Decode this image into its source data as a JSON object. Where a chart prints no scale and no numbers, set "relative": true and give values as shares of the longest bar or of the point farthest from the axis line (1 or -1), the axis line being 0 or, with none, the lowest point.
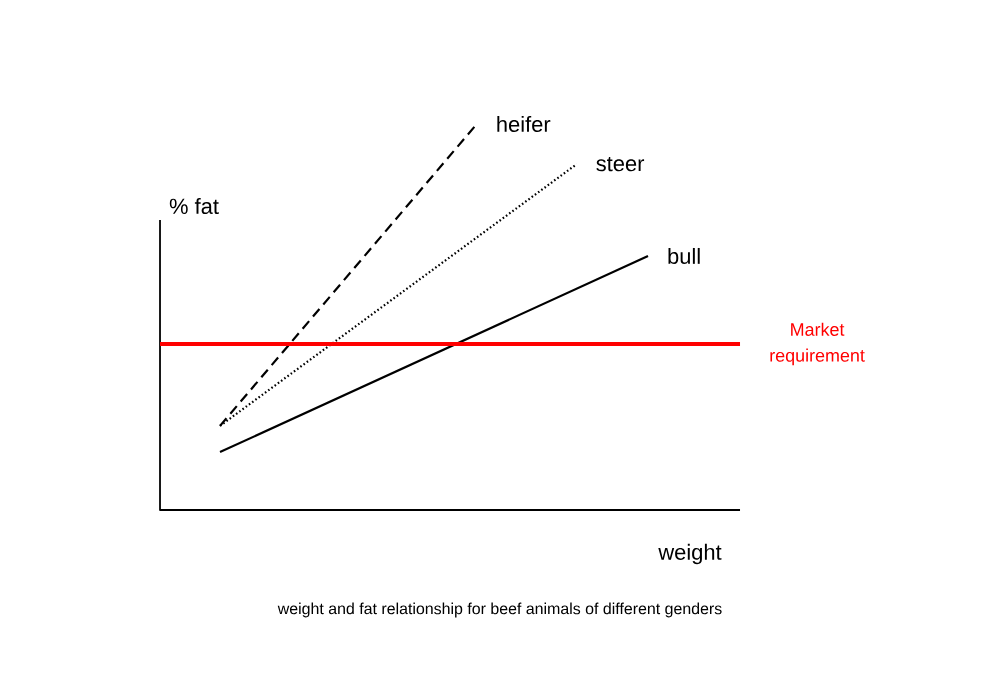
{
  "chart_data": {
    "type": "line",
    "relative": true,
    "xlabel": "weight",
    "ylabel": "% fat",
    "categories": [
      null,
      null,
      null,
      null,
      null,
      null,
      null,
      null,
      null,
      null,
      null,
      null,
      null,
      null,
      null,
      null,
      null,
      null,
      null,
      null,
      null,
      null,
      null,
      null,
      null,
      null,
      null,
      null,
      null,
      null,
      null
    ],
    "series": [
      {
        "name": "heifer",
        "color": "#000000",
        "line_style": "dashed",
        "values": [
          0.218,
          null,
          null,
          null,
          null,
          null,
          null,
          null,
          null,
          null,
          null,
          null,
          null,
          null,
          null,
          null,
          null,
          null,
          1,
          null,
          null,
          null,
          null,
          null,
          null,
          null,
          null,
          null,
          null,
          null,
          null
        ]
      },
      {
        "name": "steer",
        "color": "#000000",
        "line_style": "dotted",
        "values": [
          0.218,
          null,
          null,
          null,
          null,
          null,
          null,
          null,
          null,
          null,
          null,
          null,
          null,
          null,
          null,
          null,
          null,
          null,
          null,
          null,
          null,
          null,
          null,
          null,
          null,
          0.896,
          null,
          null,
          null,
          null,
          null
        ]
      },
      {
        "name": "bull",
        "color": "#000000",
        "line_style": "solid",
        "values": [
          0.15,
          null,
          null,
          null,
          null,
          null,
          null,
          null,
          null,
          null,
          null,
          null,
          null,
          null,
          null,
          null,
          null,
          null,
          null,
          null,
          null,
          null,
          null,
          null,
          null,
          null,
          null,
          null,
          null,
          null,
          0.658
        ]
      }
    ],
    "ref_lines": [
      {
        "axis": "y",
        "value": 0.43,
        "label": "Market requirement",
        "color": "#ff0000"
      }
    ],
    "annotations": [
      "weight and fat relationship for beef animals of different genders"
    ]
  }
}
